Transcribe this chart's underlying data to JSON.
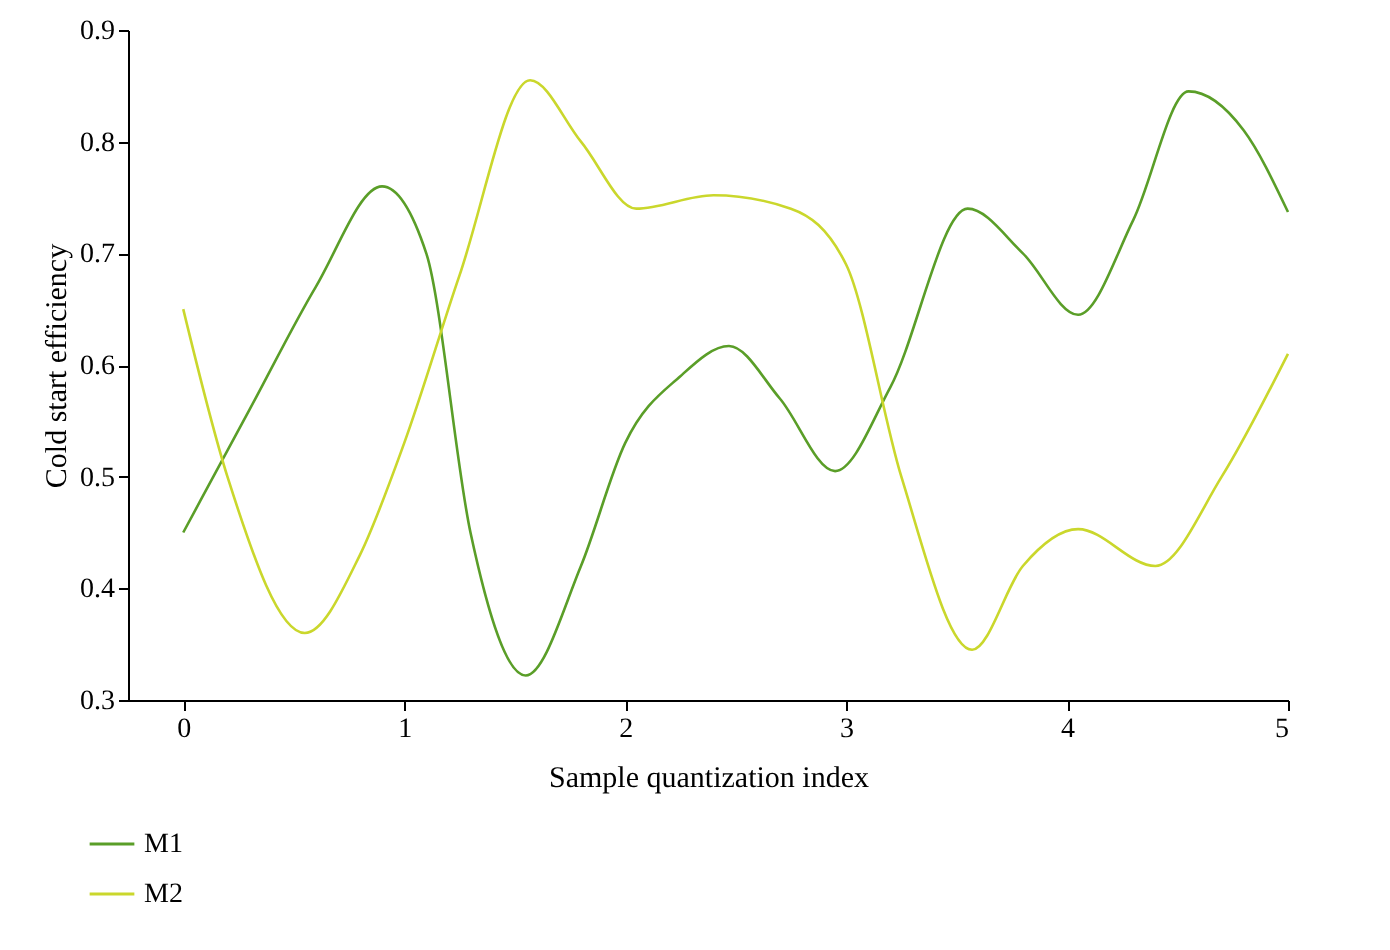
{
  "chart_data": {
    "type": "line",
    "xlabel": "Sample quantization index",
    "ylabel": "Cold start efficiency",
    "xlim": [
      -0.25,
      5
    ],
    "ylim": [
      0.3,
      0.9
    ],
    "xticks": [
      0,
      1,
      2,
      3,
      4,
      5
    ],
    "yticks": [
      0.3,
      0.4,
      0.5,
      0.6,
      0.7,
      0.8,
      0.9
    ],
    "grid": false,
    "legend": "bottom left",
    "marker": "none",
    "line_style": "solid",
    "series": [
      {
        "name": "M1",
        "color": "#5a9e28",
        "x": [
          0,
          0.3,
          0.6,
          0.9,
          1.1,
          1.3,
          1.55,
          1.8,
          2,
          2.25,
          2.47,
          2.7,
          2.95,
          3.2,
          3.55,
          3.8,
          4.05,
          4.3,
          4.55,
          4.8,
          5
        ],
        "values": [
          0.45,
          0.56,
          0.67,
          0.76,
          0.7,
          0.45,
          0.322,
          0.42,
          0.53,
          0.59,
          0.617,
          0.57,
          0.505,
          0.58,
          0.74,
          0.7,
          0.645,
          0.73,
          0.845,
          0.81,
          0.737
        ]
      },
      {
        "name": "M2",
        "color": "#cad72c",
        "x": [
          0,
          0.2,
          0.55,
          0.8,
          1,
          1.25,
          1.57,
          1.8,
          2.05,
          2.4,
          2.75,
          3,
          3.25,
          3.57,
          3.8,
          4.05,
          4.4,
          4.7,
          5
        ],
        "values": [
          0.65,
          0.5,
          0.36,
          0.43,
          0.53,
          0.68,
          0.855,
          0.8,
          0.74,
          0.752,
          0.74,
          0.69,
          0.5,
          0.345,
          0.42,
          0.453,
          0.42,
          0.5,
          0.61
        ]
      }
    ]
  }
}
